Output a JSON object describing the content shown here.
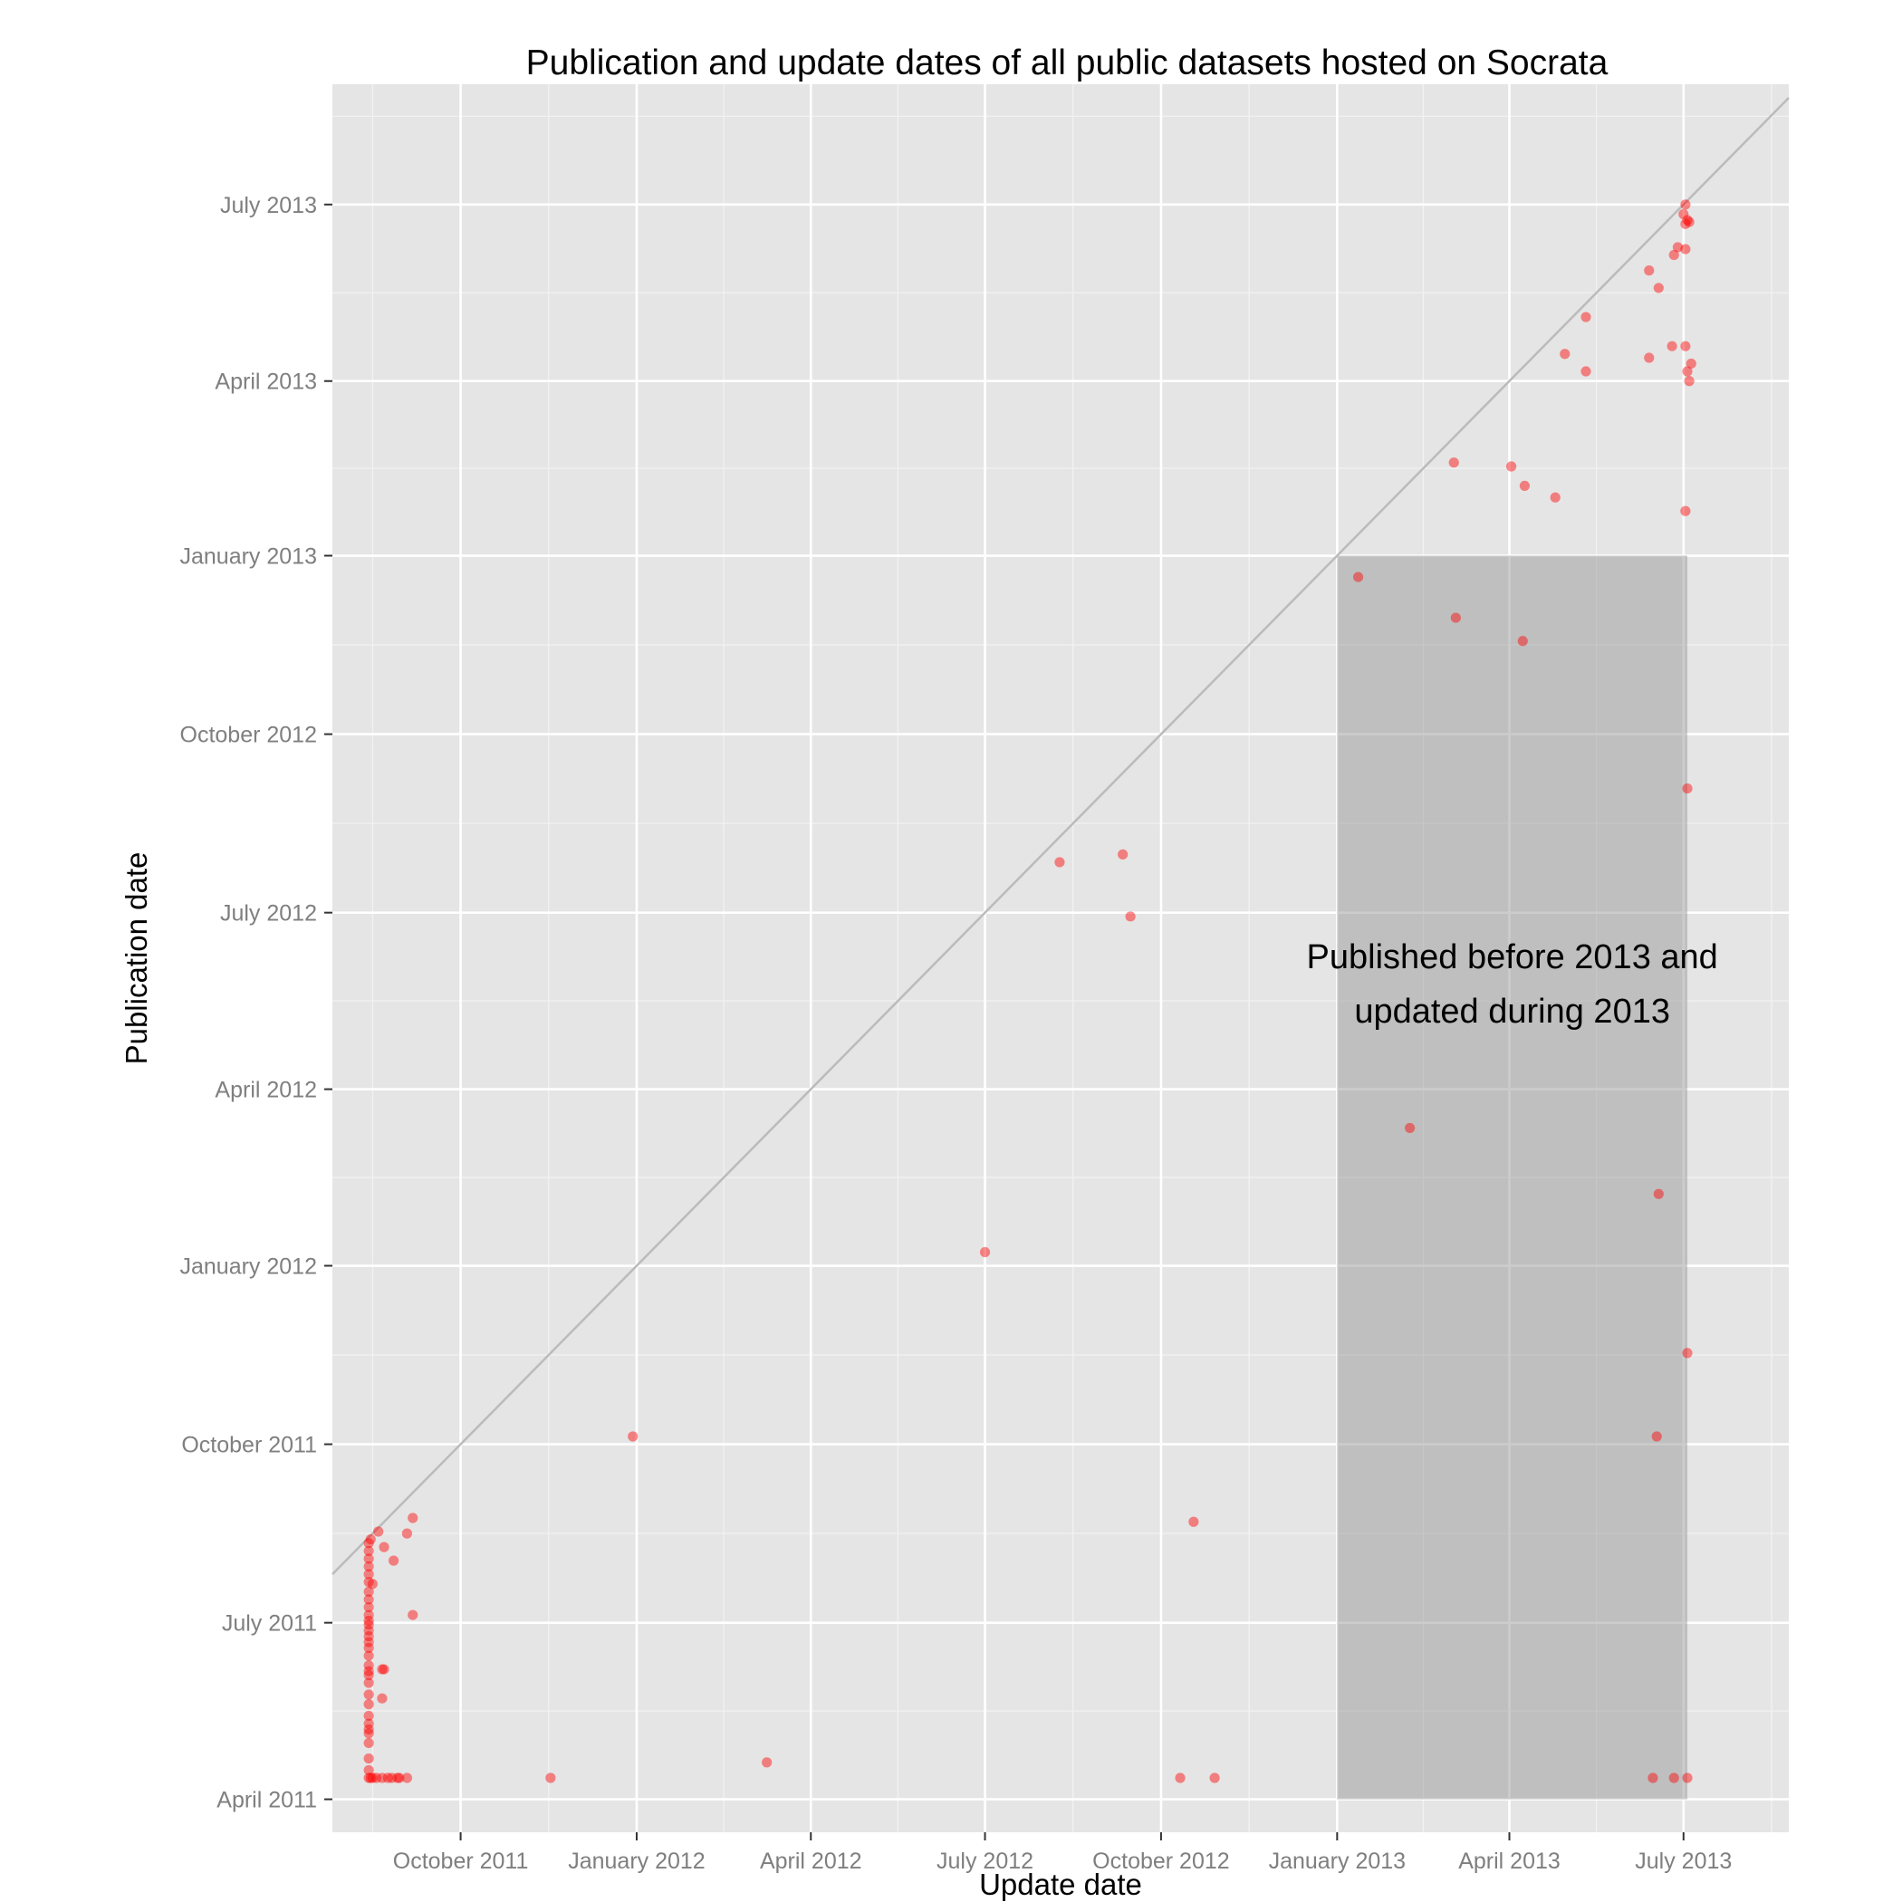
{
  "chart_data": {
    "type": "scatter",
    "title": "Publication and update dates of all public datasets hosted on Socrata",
    "xlabel": "Update date",
    "ylabel": "Publication date",
    "xlim": [
      "2011-07-26",
      "2013-08-25"
    ],
    "ylim": [
      "2011-03-15",
      "2013-09-01"
    ],
    "x_ticks": [
      {
        "date": "2011-10-01",
        "label": "October 2011"
      },
      {
        "date": "2012-01-01",
        "label": "January 2012"
      },
      {
        "date": "2012-04-01",
        "label": "April 2012"
      },
      {
        "date": "2012-07-01",
        "label": "July 2012"
      },
      {
        "date": "2012-10-01",
        "label": "October 2012"
      },
      {
        "date": "2013-01-01",
        "label": "January 2013"
      },
      {
        "date": "2013-04-01",
        "label": "April 2013"
      },
      {
        "date": "2013-07-01",
        "label": "July 2013"
      }
    ],
    "y_ticks": [
      {
        "date": "2011-04-01",
        "label": "April 2011"
      },
      {
        "date": "2011-07-01",
        "label": "July 2011"
      },
      {
        "date": "2011-10-01",
        "label": "October 2011"
      },
      {
        "date": "2012-01-01",
        "label": "January 2012"
      },
      {
        "date": "2012-04-01",
        "label": "April 2012"
      },
      {
        "date": "2012-07-01",
        "label": "July 2012"
      },
      {
        "date": "2012-10-01",
        "label": "October 2012"
      },
      {
        "date": "2013-01-01",
        "label": "January 2013"
      },
      {
        "date": "2013-04-01",
        "label": "April 2013"
      },
      {
        "date": "2013-07-01",
        "label": "July 2013"
      }
    ],
    "grid": true,
    "reference_line": "y = x",
    "highlight_region": {
      "x_range": [
        "2013-01-01",
        "2013-07-03"
      ],
      "y_range": [
        "2011-04-01",
        "2013-01-01"
      ],
      "label_lines": [
        "Published before 2013 and",
        "updated during 2013"
      ]
    },
    "colors": {
      "panel_background": "#e5e5e5",
      "grid_major": "#ffffff",
      "grid_minor": "#f2f2f2",
      "point": "#ff0000",
      "region": "#999999",
      "reference_line": "#bbbbbb",
      "tick_label": "#7f7f7f",
      "text": "#000000"
    },
    "points": [
      {
        "x": "2011-08-14",
        "y": "2011-04-12"
      },
      {
        "x": "2011-08-15",
        "y": "2011-04-12"
      },
      {
        "x": "2011-08-16",
        "y": "2011-04-12"
      },
      {
        "x": "2011-08-18",
        "y": "2011-04-12"
      },
      {
        "x": "2011-08-21",
        "y": "2011-04-12"
      },
      {
        "x": "2011-08-24",
        "y": "2011-04-12"
      },
      {
        "x": "2011-08-26",
        "y": "2011-04-12"
      },
      {
        "x": "2011-08-29",
        "y": "2011-04-12"
      },
      {
        "x": "2011-08-30",
        "y": "2011-04-12"
      },
      {
        "x": "2011-09-03",
        "y": "2011-04-12"
      },
      {
        "x": "2011-08-14",
        "y": "2011-04-16"
      },
      {
        "x": "2011-08-14",
        "y": "2011-04-22"
      },
      {
        "x": "2011-08-14",
        "y": "2011-04-30"
      },
      {
        "x": "2011-08-14",
        "y": "2011-05-05"
      },
      {
        "x": "2011-08-14",
        "y": "2011-05-07"
      },
      {
        "x": "2011-08-14",
        "y": "2011-05-10"
      },
      {
        "x": "2011-08-14",
        "y": "2011-05-14"
      },
      {
        "x": "2011-08-14",
        "y": "2011-05-20"
      },
      {
        "x": "2011-08-14",
        "y": "2011-05-25"
      },
      {
        "x": "2011-08-14",
        "y": "2011-05-31"
      },
      {
        "x": "2011-08-14",
        "y": "2011-06-04"
      },
      {
        "x": "2011-08-14",
        "y": "2011-06-06"
      },
      {
        "x": "2011-08-14",
        "y": "2011-06-09"
      },
      {
        "x": "2011-08-14",
        "y": "2011-06-14"
      },
      {
        "x": "2011-08-14",
        "y": "2011-06-18"
      },
      {
        "x": "2011-08-14",
        "y": "2011-06-21"
      },
      {
        "x": "2011-08-14",
        "y": "2011-06-24"
      },
      {
        "x": "2011-08-14",
        "y": "2011-06-27"
      },
      {
        "x": "2011-08-14",
        "y": "2011-06-30"
      },
      {
        "x": "2011-08-14",
        "y": "2011-07-02"
      },
      {
        "x": "2011-08-14",
        "y": "2011-07-05"
      },
      {
        "x": "2011-08-14",
        "y": "2011-07-09"
      },
      {
        "x": "2011-08-14",
        "y": "2011-07-13"
      },
      {
        "x": "2011-08-14",
        "y": "2011-07-17"
      },
      {
        "x": "2011-08-14",
        "y": "2011-07-22"
      },
      {
        "x": "2011-08-14",
        "y": "2011-07-26"
      },
      {
        "x": "2011-08-14",
        "y": "2011-07-30"
      },
      {
        "x": "2011-08-14",
        "y": "2011-08-03"
      },
      {
        "x": "2011-08-14",
        "y": "2011-08-07"
      },
      {
        "x": "2011-08-14",
        "y": "2011-08-11"
      },
      {
        "x": "2011-08-15",
        "y": "2011-08-13"
      },
      {
        "x": "2011-08-19",
        "y": "2011-08-17"
      },
      {
        "x": "2011-08-16",
        "y": "2011-07-21"
      },
      {
        "x": "2011-08-21",
        "y": "2011-06-07"
      },
      {
        "x": "2011-08-22",
        "y": "2011-06-07"
      },
      {
        "x": "2011-08-21",
        "y": "2011-05-23"
      },
      {
        "x": "2011-08-22",
        "y": "2011-08-09"
      },
      {
        "x": "2011-08-27",
        "y": "2011-08-02"
      },
      {
        "x": "2011-09-03",
        "y": "2011-08-16"
      },
      {
        "x": "2011-09-06",
        "y": "2011-08-24"
      },
      {
        "x": "2011-09-06",
        "y": "2011-07-05"
      },
      {
        "x": "2011-11-17",
        "y": "2011-04-12"
      },
      {
        "x": "2011-12-30",
        "y": "2011-10-05"
      },
      {
        "x": "2012-03-09",
        "y": "2011-04-20"
      },
      {
        "x": "2012-07-01",
        "y": "2012-01-08"
      },
      {
        "x": "2012-08-09",
        "y": "2012-07-27"
      },
      {
        "x": "2012-09-11",
        "y": "2012-07-31"
      },
      {
        "x": "2012-09-15",
        "y": "2012-06-29"
      },
      {
        "x": "2012-10-11",
        "y": "2011-04-12"
      },
      {
        "x": "2012-10-18",
        "y": "2011-08-22"
      },
      {
        "x": "2012-10-29",
        "y": "2011-04-12"
      },
      {
        "x": "2013-01-12",
        "y": "2012-12-21"
      },
      {
        "x": "2013-02-08",
        "y": "2012-03-12"
      },
      {
        "x": "2013-03-03",
        "y": "2013-02-18"
      },
      {
        "x": "2013-03-04",
        "y": "2012-11-30"
      },
      {
        "x": "2013-04-02",
        "y": "2013-02-16"
      },
      {
        "x": "2013-04-08",
        "y": "2012-11-18"
      },
      {
        "x": "2013-04-09",
        "y": "2013-02-06"
      },
      {
        "x": "2013-04-25",
        "y": "2013-01-31"
      },
      {
        "x": "2013-04-30",
        "y": "2013-04-15"
      },
      {
        "x": "2013-05-11",
        "y": "2013-04-06"
      },
      {
        "x": "2013-05-11",
        "y": "2013-05-04"
      },
      {
        "x": "2013-06-13",
        "y": "2013-04-13"
      },
      {
        "x": "2013-06-13",
        "y": "2013-05-28"
      },
      {
        "x": "2013-06-18",
        "y": "2013-05-19"
      },
      {
        "x": "2013-06-18",
        "y": "2012-02-07"
      },
      {
        "x": "2013-06-17",
        "y": "2011-10-05"
      },
      {
        "x": "2013-06-25",
        "y": "2013-04-19"
      },
      {
        "x": "2013-06-26",
        "y": "2013-06-05"
      },
      {
        "x": "2013-06-28",
        "y": "2013-06-09"
      },
      {
        "x": "2013-07-01",
        "y": "2013-06-26"
      },
      {
        "x": "2013-07-02",
        "y": "2013-07-01"
      },
      {
        "x": "2013-07-02",
        "y": "2013-06-21"
      },
      {
        "x": "2013-07-02",
        "y": "2013-06-08"
      },
      {
        "x": "2013-07-03",
        "y": "2013-06-23"
      },
      {
        "x": "2013-07-04",
        "y": "2013-06-22"
      },
      {
        "x": "2013-07-02",
        "y": "2013-04-19"
      },
      {
        "x": "2013-07-03",
        "y": "2013-04-06"
      },
      {
        "x": "2013-07-05",
        "y": "2013-04-10"
      },
      {
        "x": "2013-07-04",
        "y": "2013-04-01"
      },
      {
        "x": "2013-07-02",
        "y": "2013-01-24"
      },
      {
        "x": "2013-07-03",
        "y": "2012-09-03"
      },
      {
        "x": "2013-07-03",
        "y": "2011-11-17"
      },
      {
        "x": "2013-06-15",
        "y": "2011-04-12"
      },
      {
        "x": "2013-06-26",
        "y": "2011-04-12"
      },
      {
        "x": "2013-07-03",
        "y": "2011-04-12"
      }
    ]
  }
}
